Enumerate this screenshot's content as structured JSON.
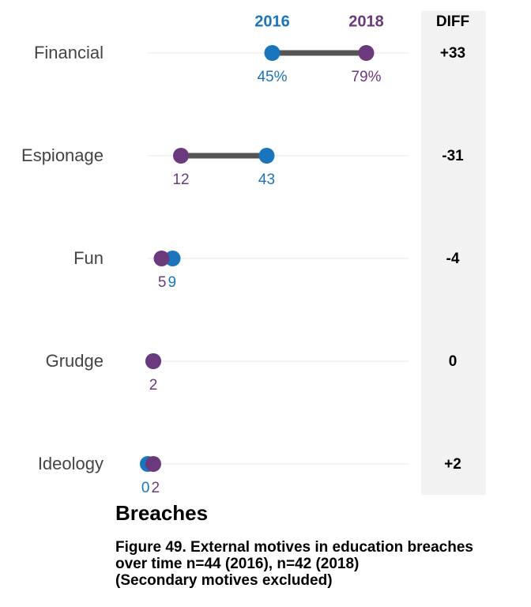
{
  "chart_data": {
    "type": "dumbbell",
    "categories": [
      "Financial",
      "Espionage",
      "Fun",
      "Grudge",
      "Ideology"
    ],
    "series": [
      {
        "name": "2016",
        "values": [
          45,
          43,
          9,
          2,
          0
        ],
        "labels": [
          "45%",
          "43",
          "9",
          "2",
          "0"
        ],
        "color": "#1a75bc"
      },
      {
        "name": "2018",
        "values": [
          79,
          12,
          5,
          2,
          2
        ],
        "labels": [
          "79%",
          "12",
          "5",
          "2",
          "2"
        ],
        "color": "#6b3a7d"
      }
    ],
    "diff_header": "DIFF",
    "diff": [
      "+33",
      "-31",
      "-4",
      "0",
      "+2"
    ],
    "xlim": [
      0,
      100
    ],
    "grid": true,
    "legend_placement": "top"
  },
  "caption": {
    "title": "Breaches",
    "lines": [
      "Figure 49. External motives in education breaches",
      "over time n=44 (2016), n=42 (2018)",
      "(Secondary motives excluded)"
    ]
  },
  "colors": {
    "connector": "#555555",
    "gridline": "#efefef",
    "diff_panel": "#f2f2f2",
    "category_text": "#444444"
  }
}
